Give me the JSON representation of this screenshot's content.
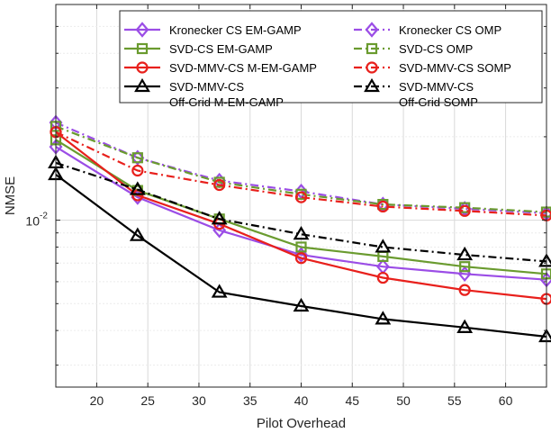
{
  "chart_data": {
    "type": "line",
    "title": "",
    "xlabel": "Pilot Overhead",
    "ylabel": "NMSE",
    "xlim": [
      16,
      64
    ],
    "ylim": [
      0.0025,
      0.06
    ],
    "yscale": "log",
    "grid": true,
    "legend_position": "top-right",
    "x": [
      16,
      24,
      32,
      40,
      48,
      56,
      64
    ],
    "xticks": [
      20,
      25,
      30,
      35,
      40,
      45,
      50,
      55,
      60
    ],
    "ytick_label": {
      "base": "10",
      "exponent": "-2"
    },
    "series": [
      {
        "name": "Kronecker CS EM-GAMP",
        "legend_lines": [
          "Kronecker CS EM-GAMP"
        ],
        "color": "#9b4de6",
        "marker": "diamond",
        "dash": "solid",
        "values": [
          0.0184,
          0.0121,
          0.0092,
          0.0075,
          0.0068,
          0.0064,
          0.0061
        ]
      },
      {
        "name": "SVD-CS EM-GAMP",
        "legend_lines": [
          "SVD-CS EM-GAMP"
        ],
        "color": "#6a9b2f",
        "marker": "square",
        "dash": "solid",
        "values": [
          0.0195,
          0.0128,
          0.0101,
          0.008,
          0.0074,
          0.0068,
          0.0064
        ]
      },
      {
        "name": "SVD-MMV-CS M-EM-GAMP",
        "legend_lines": [
          "SVD-MMV-CS M-EM-GAMP"
        ],
        "color": "#e8201c",
        "marker": "circle",
        "dash": "solid",
        "values": [
          0.0208,
          0.0123,
          0.0097,
          0.0073,
          0.0062,
          0.0056,
          0.0052
        ]
      },
      {
        "name": "SVD-MMV-CS Off-Grid M-EM-GAMP",
        "legend_lines": [
          "SVD-MMV-CS",
          "Off-Grid M-EM-GAMP"
        ],
        "color": "#000000",
        "marker": "triangle",
        "dash": "solid",
        "values": [
          0.0146,
          0.0088,
          0.0055,
          0.0049,
          0.0044,
          0.0041,
          0.0038
        ]
      },
      {
        "name": "Kronecker CS OMP",
        "legend_lines": [
          "Kronecker CS OMP"
        ],
        "color": "#9b4de6",
        "marker": "diamond",
        "dash": "dashdot",
        "values": [
          0.0225,
          0.0168,
          0.0139,
          0.0127,
          0.0114,
          0.011,
          0.0106
        ]
      },
      {
        "name": "SVD-CS OMP",
        "legend_lines": [
          "SVD-CS OMP"
        ],
        "color": "#6a9b2f",
        "marker": "square",
        "dash": "dashdot",
        "values": [
          0.0218,
          0.0168,
          0.0137,
          0.0124,
          0.0114,
          0.0111,
          0.0107
        ]
      },
      {
        "name": "SVD-MMV-CS SOMP",
        "legend_lines": [
          "SVD-MMV-CS SOMP"
        ],
        "color": "#e8201c",
        "marker": "circle",
        "dash": "dashdot",
        "values": [
          0.0208,
          0.0151,
          0.0134,
          0.0121,
          0.0112,
          0.0108,
          0.0104
        ]
      },
      {
        "name": "SVD-MMV-CS Off-Grid SOMP",
        "legend_lines": [
          "SVD-MMV-CS",
          "Off-Grid SOMP"
        ],
        "color": "#000000",
        "marker": "triangle",
        "dash": "dashdot",
        "values": [
          0.0161,
          0.0129,
          0.0101,
          0.0089,
          0.008,
          0.0075,
          0.0071
        ]
      }
    ]
  }
}
